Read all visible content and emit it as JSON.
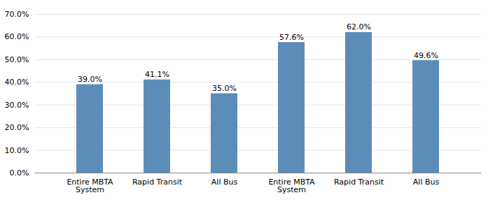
{
  "chart_data": {
    "type": "bar",
    "categories": [
      "Entire MBTA\nSystem",
      "Rapid Transit",
      "All Bus",
      "Entire MBTA\nSystem",
      "Rapid Transit",
      "All Bus"
    ],
    "values": [
      0.39,
      0.411,
      0.35,
      0.576,
      0.62,
      0.496
    ],
    "value_labels": [
      "39.0%",
      "41.1%",
      "35.0%",
      "57.6%",
      "62.0%",
      "49.6%"
    ],
    "data_labels": true,
    "color": "#5b8db8",
    "ylim": [
      0,
      0.7
    ],
    "yticks": [
      {
        "value": 0.0,
        "label": "0.0%"
      },
      {
        "value": 0.1,
        "label": "10.0%"
      },
      {
        "value": 0.2,
        "label": "20.0%"
      },
      {
        "value": 0.3,
        "label": "30.0%"
      },
      {
        "value": 0.4,
        "label": "40.0%"
      },
      {
        "value": 0.5,
        "label": "50.0%"
      },
      {
        "value": 0.6,
        "label": "60.0%"
      },
      {
        "value": 0.7,
        "label": "70.0%"
      }
    ],
    "grid": true
  }
}
